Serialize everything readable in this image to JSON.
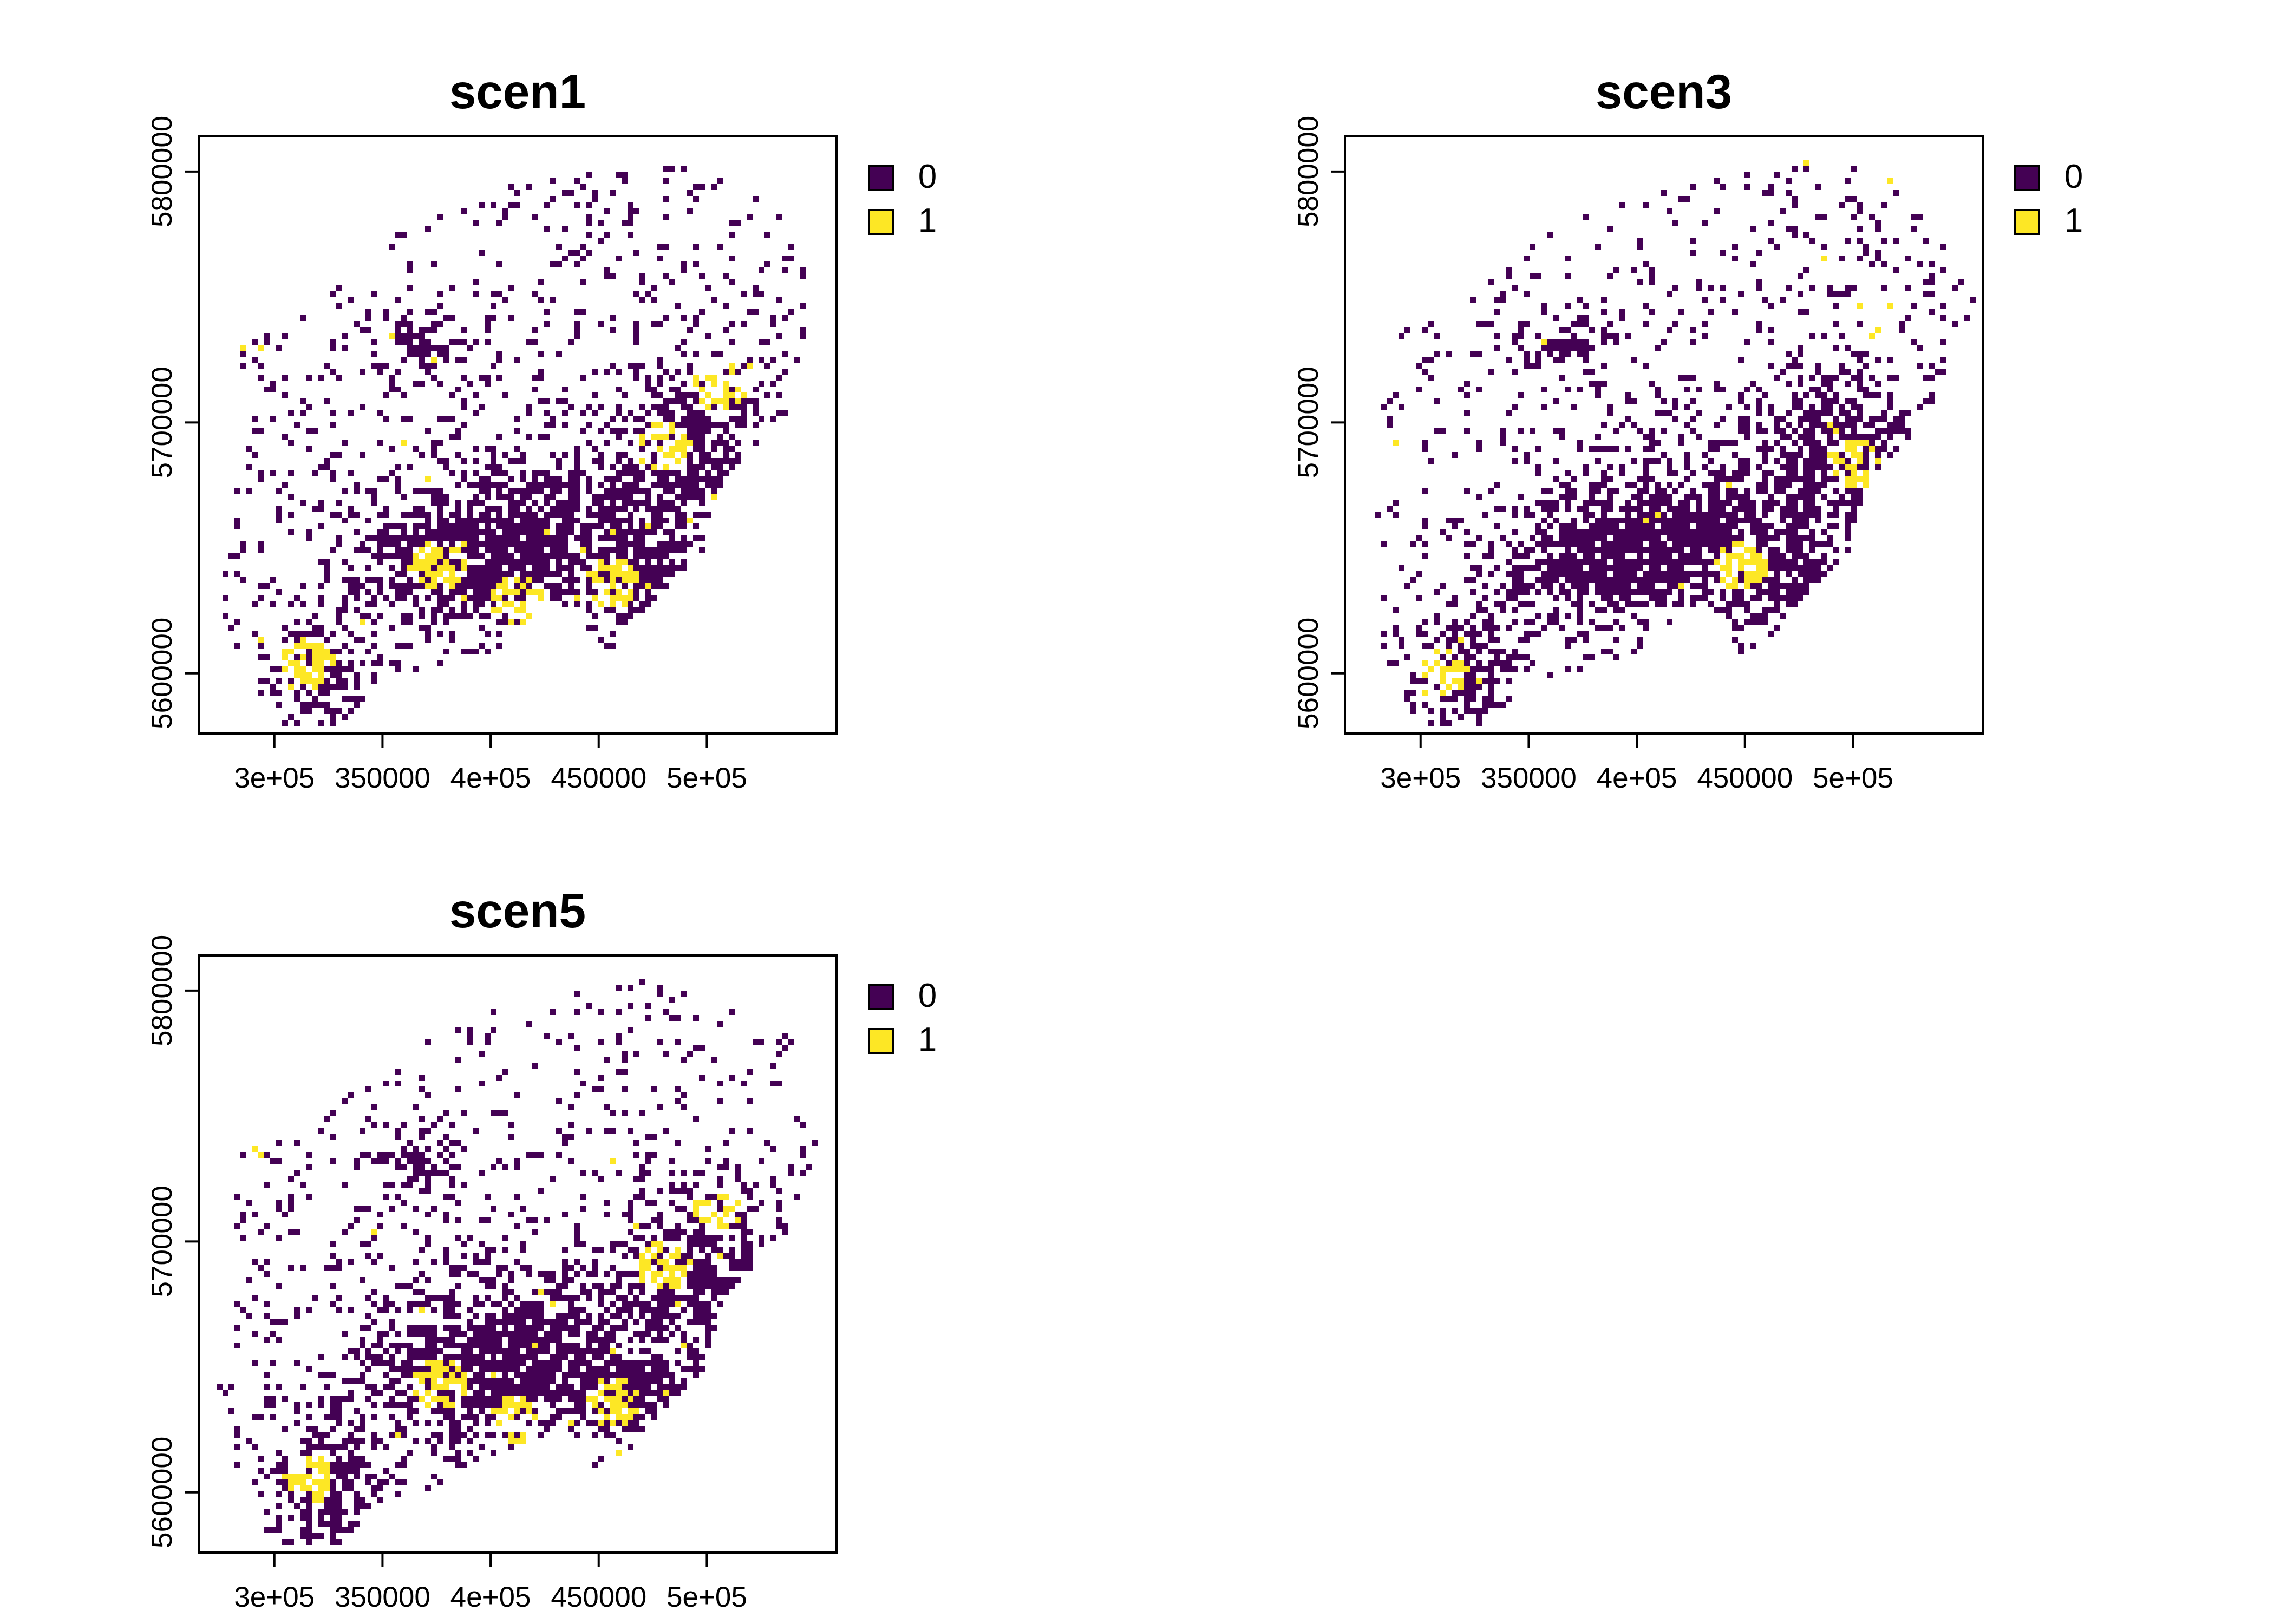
{
  "chart_data": [
    {
      "type": "heatmap",
      "title": "scen1",
      "xlim": [
        265000,
        560000
      ],
      "ylim": [
        5576000,
        5814000
      ],
      "x_ticks": [
        {
          "value": 300000,
          "label": "3e+05"
        },
        {
          "value": 350000,
          "label": "350000"
        },
        {
          "value": 400000,
          "label": "4e+05"
        },
        {
          "value": 450000,
          "label": "450000"
        },
        {
          "value": 500000,
          "label": "5e+05"
        }
      ],
      "y_ticks": [
        {
          "value": 5600000,
          "label": "5600000"
        },
        {
          "value": 5700000,
          "label": "5700000"
        },
        {
          "value": 5800000,
          "label": "5800000"
        }
      ],
      "legend": [
        {
          "label": "0",
          "color": "#440154"
        },
        {
          "label": "1",
          "color": "#FDE725"
        }
      ],
      "legend_position": "right",
      "yellow_weight": 0.13
    },
    {
      "type": "heatmap",
      "title": "scen3",
      "xlim": [
        265000,
        560000
      ],
      "ylim": [
        5576000,
        5814000
      ],
      "x_ticks": [
        {
          "value": 300000,
          "label": "3e+05"
        },
        {
          "value": 350000,
          "label": "350000"
        },
        {
          "value": 400000,
          "label": "4e+05"
        },
        {
          "value": 450000,
          "label": "450000"
        },
        {
          "value": 500000,
          "label": "5e+05"
        }
      ],
      "y_ticks": [
        {
          "value": 5600000,
          "label": "5600000"
        },
        {
          "value": 5700000,
          "label": "5700000"
        },
        {
          "value": 5800000,
          "label": "5800000"
        }
      ],
      "legend": [
        {
          "label": "0",
          "color": "#440154"
        },
        {
          "label": "1",
          "color": "#FDE725"
        }
      ],
      "legend_position": "right",
      "yellow_weight": 0.1
    },
    {
      "type": "heatmap",
      "title": "scen5",
      "xlim": [
        265000,
        560000
      ],
      "ylim": [
        5576000,
        5814000
      ],
      "x_ticks": [
        {
          "value": 300000,
          "label": "3e+05"
        },
        {
          "value": 350000,
          "label": "350000"
        },
        {
          "value": 400000,
          "label": "4e+05"
        },
        {
          "value": 450000,
          "label": "450000"
        },
        {
          "value": 500000,
          "label": "5e+05"
        }
      ],
      "y_ticks": [
        {
          "value": 5600000,
          "label": "5600000"
        },
        {
          "value": 5700000,
          "label": "5700000"
        },
        {
          "value": 5800000,
          "label": "5800000"
        }
      ],
      "legend": [
        {
          "label": "0",
          "color": "#440154"
        },
        {
          "label": "1",
          "color": "#FDE725"
        }
      ],
      "legend_position": "right",
      "yellow_weight": 0.13
    }
  ]
}
